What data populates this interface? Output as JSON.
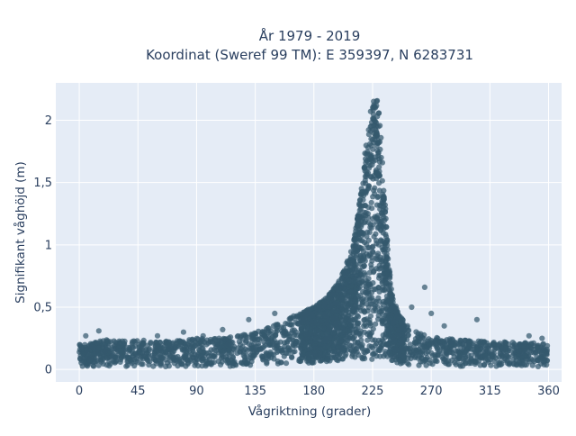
{
  "chart_data": {
    "type": "scatter",
    "title_lines": [
      "År 1979 - 2019",
      "Koordinat (Sweref 99 TM): E 359397, N 6283731"
    ],
    "xlabel": "Vågriktning (grader)",
    "ylabel": "Signifikant våghöjd (m)",
    "xlim": [
      -18,
      370
    ],
    "ylim": [
      -0.1,
      2.3
    ],
    "x_ticks": [
      0,
      45,
      90,
      135,
      180,
      225,
      270,
      315,
      360
    ],
    "x_tick_labels": [
      "0",
      "45",
      "90",
      "135",
      "180",
      "225",
      "270",
      "315",
      "360"
    ],
    "y_ticks": [
      0,
      0.5,
      1,
      1.5,
      2
    ],
    "y_tick_labels": [
      "0",
      "0,5",
      "1",
      "1,5",
      "2"
    ],
    "grid": true,
    "marker_color": "#34596e",
    "plot_background": "#e5ecf6",
    "gridline_color": "#ffffff",
    "text_color": "#2a3f5f",
    "upper_envelope": {
      "direction": [
        0,
        10,
        20,
        30,
        45,
        60,
        90,
        110,
        120,
        135,
        145,
        150,
        160,
        170,
        180,
        190,
        200,
        205,
        210,
        212,
        215,
        218,
        220,
        222,
        224,
        226,
        228,
        230,
        232,
        234,
        236,
        238,
        240,
        245,
        250,
        255,
        260,
        270,
        300,
        330,
        360
      ],
      "height": [
        0.2,
        0.21,
        0.24,
        0.23,
        0.24,
        0.22,
        0.25,
        0.25,
        0.27,
        0.3,
        0.34,
        0.37,
        0.42,
        0.46,
        0.5,
        0.58,
        0.72,
        0.85,
        1.0,
        1.12,
        1.35,
        1.6,
        1.85,
        1.98,
        2.1,
        2.2,
        2.18,
        2.1,
        1.8,
        1.45,
        1.1,
        0.8,
        0.6,
        0.45,
        0.37,
        0.32,
        0.3,
        0.26,
        0.23,
        0.22,
        0.21
      ]
    },
    "outliers": [
      {
        "x": 15,
        "y": 0.31
      },
      {
        "x": 265,
        "y": 0.66
      },
      {
        "x": 305,
        "y": 0.4
      },
      {
        "x": 270,
        "y": 0.45
      },
      {
        "x": 255,
        "y": 0.5
      },
      {
        "x": 130,
        "y": 0.4
      },
      {
        "x": 150,
        "y": 0.45
      },
      {
        "x": 80,
        "y": 0.3
      },
      {
        "x": 110,
        "y": 0.32
      },
      {
        "x": 345,
        "y": 0.27
      },
      {
        "x": 355,
        "y": 0.25
      },
      {
        "x": 5,
        "y": 0.27
      },
      {
        "x": 60,
        "y": 0.27
      },
      {
        "x": 95,
        "y": 0.27
      },
      {
        "x": 280,
        "y": 0.35
      }
    ]
  }
}
